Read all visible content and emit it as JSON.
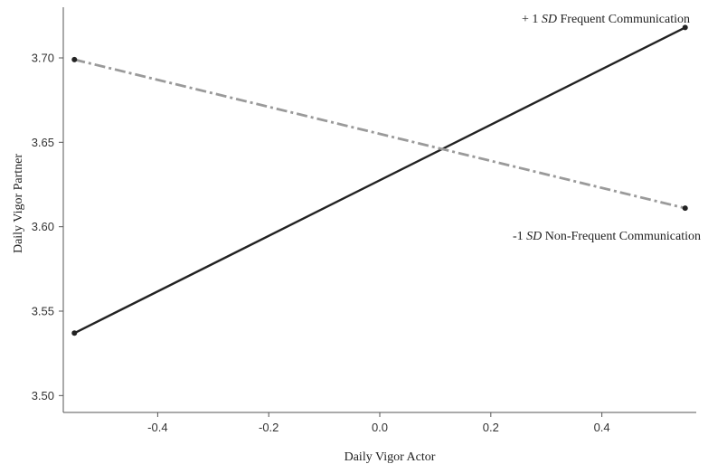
{
  "chart_data": {
    "type": "line",
    "xlabel": "Daily Vigor Actor",
    "ylabel": "Daily Vigor Partner",
    "xlim": [
      -0.57,
      0.57
    ],
    "ylim": [
      3.49,
      3.73
    ],
    "x_ticks": [
      -0.4,
      -0.2,
      0.0,
      0.2,
      0.4
    ],
    "x_tick_labels": [
      "-0.4",
      "-0.2",
      "0.0",
      "0.2",
      "0.4"
    ],
    "y_ticks": [
      3.5,
      3.55,
      3.6,
      3.65,
      3.7
    ],
    "y_tick_labels": [
      "3.50",
      "3.55",
      "3.60",
      "3.65",
      "3.70"
    ],
    "grid": false,
    "legend": "none",
    "series": [
      {
        "x": [
          -0.55,
          0.55
        ],
        "y": [
          3.537,
          3.718
        ],
        "color": "#222222",
        "style": "solid"
      },
      {
        "x": [
          -0.55,
          0.55
        ],
        "y": [
          3.699,
          3.611
        ],
        "color": "#9a9a9a",
        "style": "dashdot"
      }
    ],
    "annotations": [
      {
        "id": "frequent",
        "prefix": "+ 1 ",
        "sd": "SD",
        "suffix": " Frequent Communication",
        "near": "top-right"
      },
      {
        "id": "nonfrequent",
        "prefix": "-1 ",
        "sd": "SD",
        "suffix": " Non-Frequent Communication",
        "near": "right"
      }
    ]
  }
}
